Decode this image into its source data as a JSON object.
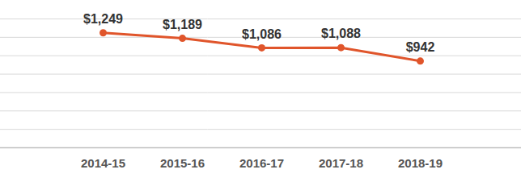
{
  "chart_data": {
    "type": "line",
    "categories": [
      "2014-15",
      "2015-16",
      "2016-17",
      "2017-18",
      "2018-19"
    ],
    "values": [
      1249,
      1189,
      1086,
      1088,
      942
    ],
    "value_labels": [
      "$1,249",
      "$1,189",
      "$1,086",
      "$1,088",
      "$942"
    ],
    "color": "#e0552b",
    "marker": "circle",
    "line_style": "solid",
    "ylim": [
      0,
      1400
    ],
    "yticks": [
      0,
      200,
      400,
      600,
      800,
      1000,
      1200,
      1400
    ],
    "grid": true,
    "data_labels": true,
    "tick_labels": "x"
  }
}
